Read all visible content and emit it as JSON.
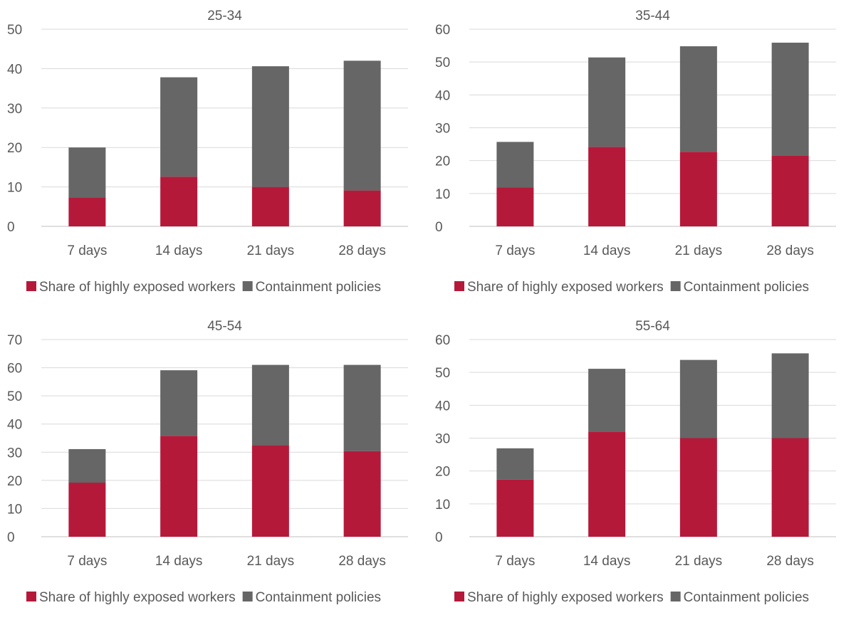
{
  "colors": {
    "exposed": "#b5193a",
    "containment": "#666666"
  },
  "chart_data": [
    {
      "type": "bar",
      "stacked": true,
      "title": "25-34",
      "categories": [
        "7 days",
        "14 days",
        "21 days",
        "28 days"
      ],
      "yticks": [
        "0",
        "10",
        "20",
        "30",
        "40",
        "50"
      ],
      "ylim": [
        0,
        50
      ],
      "series": [
        {
          "name": "Share of highly exposed workers",
          "values": [
            7.3,
            12.6,
            10.0,
            9.1
          ]
        },
        {
          "name": "Containment policies",
          "values": [
            12.7,
            25.2,
            30.6,
            32.9
          ]
        }
      ],
      "legend": "bottom"
    },
    {
      "type": "bar",
      "stacked": true,
      "title": "35-44",
      "categories": [
        "7 days",
        "14 days",
        "21 days",
        "28 days"
      ],
      "yticks": [
        "0",
        "10",
        "20",
        "30",
        "40",
        "50",
        "60"
      ],
      "ylim": [
        0,
        60
      ],
      "series": [
        {
          "name": "Share of highly exposed workers",
          "values": [
            11.8,
            24.2,
            22.7,
            21.6
          ]
        },
        {
          "name": "Containment policies",
          "values": [
            13.9,
            27.2,
            32.1,
            34.3
          ]
        }
      ],
      "legend": "bottom"
    },
    {
      "type": "bar",
      "stacked": true,
      "title": "45-54",
      "categories": [
        "7 days",
        "14 days",
        "21 days",
        "28 days"
      ],
      "yticks": [
        "0",
        "10",
        "20",
        "30",
        "40",
        "50",
        "60",
        "70"
      ],
      "ylim": [
        0,
        70
      ],
      "series": [
        {
          "name": "Share of highly exposed workers",
          "values": [
            19.2,
            35.8,
            32.5,
            30.4
          ]
        },
        {
          "name": "Containment policies",
          "values": [
            11.9,
            23.3,
            28.5,
            30.6
          ]
        }
      ],
      "legend": "bottom"
    },
    {
      "type": "bar",
      "stacked": true,
      "title": "55-64",
      "categories": [
        "7 days",
        "14 days",
        "21 days",
        "28 days"
      ],
      "yticks": [
        "0",
        "10",
        "20",
        "30",
        "40",
        "50",
        "60"
      ],
      "ylim": [
        0,
        60
      ],
      "series": [
        {
          "name": "Share of highly exposed workers",
          "values": [
            17.4,
            32.0,
            30.0,
            30.0
          ]
        },
        {
          "name": "Containment policies",
          "values": [
            9.5,
            19.1,
            23.8,
            25.8
          ]
        }
      ],
      "legend": "bottom"
    }
  ]
}
